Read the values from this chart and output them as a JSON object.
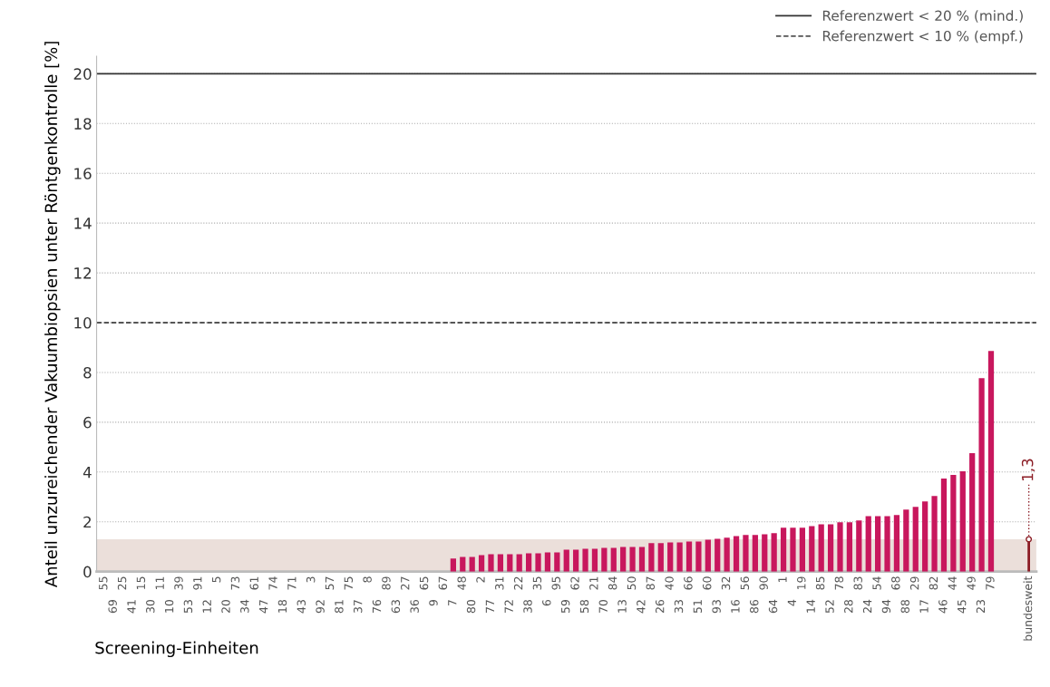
{
  "chart_data": {
    "type": "bar",
    "xlabel": "Screening-Einheiten",
    "ylabel": "Anteil unzureichender Vakuumbiopsien unter Röntgenkontrolle [%]",
    "categories": [
      "55",
      "69",
      "25",
      "41",
      "15",
      "30",
      "11",
      "10",
      "39",
      "53",
      "91",
      "12",
      "5",
      "20",
      "73",
      "34",
      "61",
      "47",
      "74",
      "18",
      "71",
      "43",
      "3",
      "92",
      "57",
      "81",
      "75",
      "37",
      "8",
      "76",
      "89",
      "63",
      "27",
      "36",
      "65",
      "9",
      "67",
      "7",
      "48",
      "80",
      "2",
      "77",
      "31",
      "72",
      "22",
      "38",
      "35",
      "6",
      "95",
      "59",
      "62",
      "58",
      "21",
      "70",
      "84",
      "13",
      "50",
      "42",
      "87",
      "26",
      "40",
      "33",
      "66",
      "51",
      "60",
      "93",
      "32",
      "16",
      "56",
      "86",
      "90",
      "64",
      "1",
      "4",
      "19",
      "14",
      "85",
      "52",
      "78",
      "28",
      "83",
      "24",
      "54",
      "94",
      "68",
      "88",
      "29",
      "17",
      "82",
      "46",
      "44",
      "45",
      "49",
      "23",
      "79",
      null,
      null,
      null,
      "bundesweit"
    ],
    "series": [
      {
        "color": "#c8175d",
        "values": [
          0,
          0,
          0,
          0,
          0,
          0,
          0,
          0,
          0,
          0,
          0,
          0,
          0,
          0,
          0,
          0,
          0,
          0,
          0,
          0,
          0,
          0,
          0,
          0,
          0,
          0,
          0,
          0,
          0,
          0,
          0,
          0,
          0,
          0,
          0,
          0,
          0,
          0.52,
          0.59,
          0.59,
          0.66,
          0.7,
          0.7,
          0.7,
          0.7,
          0.73,
          0.73,
          0.77,
          0.77,
          0.88,
          0.88,
          0.92,
          0.92,
          0.95,
          0.95,
          0.99,
          0.99,
          0.99,
          1.14,
          1.14,
          1.17,
          1.17,
          1.21,
          1.21,
          1.28,
          1.32,
          1.36,
          1.43,
          1.47,
          1.47,
          1.5,
          1.54,
          1.76,
          1.76,
          1.76,
          1.83,
          1.9,
          1.9,
          1.98,
          1.98,
          2.05,
          2.23,
          2.23,
          2.23,
          2.27,
          2.49,
          2.6,
          2.82,
          3.04,
          3.74,
          3.88,
          4.03,
          4.76,
          7.77,
          8.86,
          null,
          null,
          null,
          null
        ]
      },
      {
        "type": "lollipop",
        "color": "#8b1c24",
        "values": [
          null,
          null,
          null,
          null,
          null,
          null,
          null,
          null,
          null,
          null,
          null,
          null,
          null,
          null,
          null,
          null,
          null,
          null,
          null,
          null,
          null,
          null,
          null,
          null,
          null,
          null,
          null,
          null,
          null,
          null,
          null,
          null,
          null,
          null,
          null,
          null,
          null,
          null,
          null,
          null,
          null,
          null,
          null,
          null,
          null,
          null,
          null,
          null,
          null,
          null,
          null,
          null,
          null,
          null,
          null,
          null,
          null,
          null,
          null,
          null,
          null,
          null,
          null,
          null,
          null,
          null,
          null,
          null,
          null,
          null,
          null,
          null,
          null,
          null,
          null,
          null,
          null,
          null,
          null,
          null,
          null,
          null,
          null,
          null,
          null,
          null,
          null,
          null,
          null,
          null,
          null,
          null,
          null,
          null,
          null,
          null,
          null,
          null,
          1.3
        ],
        "value_labels": [
          null,
          null,
          null,
          null,
          null,
          null,
          null,
          null,
          null,
          null,
          null,
          null,
          null,
          null,
          null,
          null,
          null,
          null,
          null,
          null,
          null,
          null,
          null,
          null,
          null,
          null,
          null,
          null,
          null,
          null,
          null,
          null,
          null,
          null,
          null,
          null,
          null,
          null,
          null,
          null,
          null,
          null,
          null,
          null,
          null,
          null,
          null,
          null,
          null,
          null,
          null,
          null,
          null,
          null,
          null,
          null,
          null,
          null,
          null,
          null,
          null,
          null,
          null,
          null,
          null,
          null,
          null,
          null,
          null,
          null,
          null,
          null,
          null,
          null,
          null,
          null,
          null,
          null,
          null,
          null,
          null,
          null,
          null,
          null,
          null,
          null,
          null,
          null,
          null,
          null,
          null,
          null,
          null,
          null,
          null,
          null,
          null,
          null,
          "1,3"
        ]
      }
    ],
    "ylim": [
      0,
      20.7
    ],
    "yticks": [
      0,
      2,
      4,
      6,
      8,
      10,
      12,
      14,
      16,
      18,
      20
    ],
    "grid": "y",
    "ref_lines": [
      {
        "axis": "y",
        "value": 20,
        "label": "Referenzwert < 20 % (mind.)",
        "color": "#333333",
        "line_style": "solid"
      },
      {
        "axis": "y",
        "value": 10,
        "label": "Referenzwert < 10 % (empf.)",
        "color": "#555555",
        "line_style": "dashed"
      }
    ],
    "bands": [
      {
        "axis": "y",
        "from": 0,
        "to": 1.3,
        "color": "#ebdfda"
      }
    ],
    "legend": "top right"
  }
}
